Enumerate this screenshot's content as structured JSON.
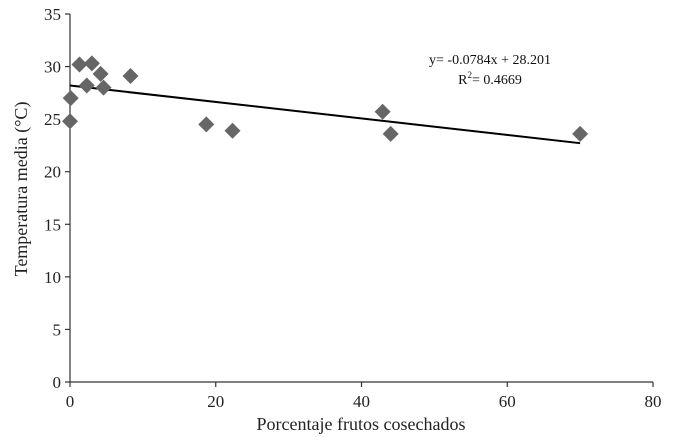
{
  "chart_data": {
    "type": "scatter",
    "title": "",
    "xlabel": "Porcentaje frutos cosechados",
    "ylabel": "Temperatura media (°C)",
    "xlim": [
      0,
      80
    ],
    "ylim": [
      0,
      35
    ],
    "xticks": [
      0,
      20,
      40,
      60,
      80
    ],
    "yticks": [
      0,
      5,
      10,
      15,
      20,
      25,
      30,
      35
    ],
    "grid": false,
    "marker_color": "#666666",
    "line_color": "#000000",
    "points": [
      {
        "x": 0.0,
        "y": 24.8
      },
      {
        "x": 0.1,
        "y": 27.0
      },
      {
        "x": 1.3,
        "y": 30.2
      },
      {
        "x": 2.3,
        "y": 28.2
      },
      {
        "x": 3.0,
        "y": 30.3
      },
      {
        "x": 4.2,
        "y": 29.3
      },
      {
        "x": 4.6,
        "y": 28.0
      },
      {
        "x": 8.3,
        "y": 29.1
      },
      {
        "x": 18.7,
        "y": 24.5
      },
      {
        "x": 22.3,
        "y": 23.9
      },
      {
        "x": 42.9,
        "y": 25.7
      },
      {
        "x": 44.0,
        "y": 23.6
      },
      {
        "x": 70.0,
        "y": 23.6
      }
    ],
    "trendline": {
      "slope": -0.0784,
      "intercept": 28.201,
      "x_range": [
        0,
        70
      ]
    },
    "equation_line1": "y= -0.0784x + 28.201",
    "equation_r2_prefix": "R",
    "equation_r2_sup": "2",
    "equation_r2_value": "= 0.4669"
  }
}
